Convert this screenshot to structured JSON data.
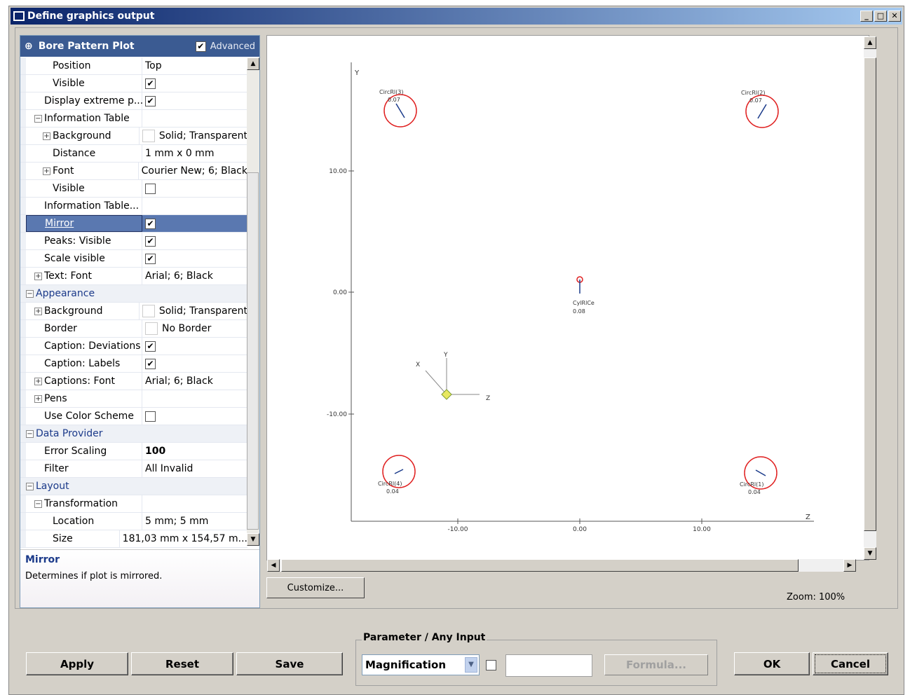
{
  "window": {
    "title": "Define graphics output"
  },
  "panel": {
    "title": "Bore Pattern Plot",
    "advanced_label": "Advanced",
    "advanced_checked": true
  },
  "rows": [
    {
      "label": "Position",
      "indent": 2,
      "value": "Top"
    },
    {
      "label": "Visible",
      "indent": 2,
      "check": true
    },
    {
      "label": "Display extreme p...",
      "indent": 1,
      "check": true
    },
    {
      "label": "Information Table",
      "indent": 1,
      "expander": "minus"
    },
    {
      "label": "Background",
      "indent": 2,
      "expander": "plus",
      "value": "Solid; Transparent",
      "swatch": true
    },
    {
      "label": "Distance",
      "indent": 2,
      "value": "1 mm x 0 mm"
    },
    {
      "label": "Font",
      "indent": 2,
      "expander": "plus",
      "value": "Courier New; 6; Black"
    },
    {
      "label": "Visible",
      "indent": 2,
      "check": false
    },
    {
      "label": "Information Table...",
      "indent": 1
    },
    {
      "label": "Mirror",
      "indent": 1,
      "check": true,
      "selected": true
    },
    {
      "label": "Peaks: Visible",
      "indent": 1,
      "check": true
    },
    {
      "label": "Scale visible",
      "indent": 1,
      "check": true
    },
    {
      "label": "Text: Font",
      "indent": 1,
      "expander": "plus",
      "value": "Arial; 6; Black"
    },
    {
      "label": "Appearance",
      "indent": 0,
      "expander": "minus",
      "category": true
    },
    {
      "label": "Background",
      "indent": 1,
      "expander": "plus",
      "value": "Solid; Transparent",
      "swatch": true
    },
    {
      "label": "Border",
      "indent": 1,
      "value": "No Border",
      "swatch": true
    },
    {
      "label": "Caption: Deviations",
      "indent": 1,
      "check": true
    },
    {
      "label": "Caption: Labels",
      "indent": 1,
      "check": true
    },
    {
      "label": "Captions: Font",
      "indent": 1,
      "expander": "plus",
      "value": "Arial; 6; Black"
    },
    {
      "label": "Pens",
      "indent": 1,
      "expander": "plus"
    },
    {
      "label": "Use Color Scheme",
      "indent": 1,
      "check": false
    },
    {
      "label": "Data Provider",
      "indent": 0,
      "expander": "minus",
      "category": true
    },
    {
      "label": "Error Scaling",
      "indent": 1,
      "value": "100",
      "bold": true
    },
    {
      "label": "Filter",
      "indent": 1,
      "value": "All Invalid"
    },
    {
      "label": "Layout",
      "indent": 0,
      "expander": "minus",
      "category": true
    },
    {
      "label": "Transformation",
      "indent": 1,
      "expander": "minus"
    },
    {
      "label": "Location",
      "indent": 2,
      "value": "5 mm; 5 mm"
    },
    {
      "label": "Size",
      "indent": 2,
      "value": "181,03 mm x 154,57 m..."
    }
  ],
  "description": {
    "title": "Mirror",
    "text": "Determines if plot is mirrored."
  },
  "plot": {
    "x_axis_label": "Z",
    "y_axis_label": "Y",
    "x_ticks": [
      "-10.00",
      "0.00",
      "10.00"
    ],
    "y_ticks": [
      "10.00",
      "0.00",
      "-10.00"
    ],
    "features": [
      {
        "name": "CircRl(3)",
        "value": "0.07"
      },
      {
        "name": "CircRl(2)",
        "value": "0.07"
      },
      {
        "name": "CylRlCe",
        "value": "0.08"
      },
      {
        "name": "CircRl(4)",
        "value": "0.04"
      },
      {
        "name": "CircRl(1)",
        "value": "0.04"
      }
    ],
    "triad": {
      "x": "X",
      "y": "Y",
      "z": "Z"
    }
  },
  "customize_label": "Customize...",
  "zoom_label": "Zoom: 100%",
  "buttons": {
    "apply": "Apply",
    "reset": "Reset",
    "save": "Save",
    "ok": "OK",
    "cancel": "Cancel"
  },
  "parameter": {
    "group_label": "Parameter / Any Input",
    "selected": "Magnification",
    "formula_label": "Formula..."
  },
  "colors": {
    "accent": "#3b5b92",
    "selection": "#5a78b0",
    "circle": "#e02020"
  }
}
